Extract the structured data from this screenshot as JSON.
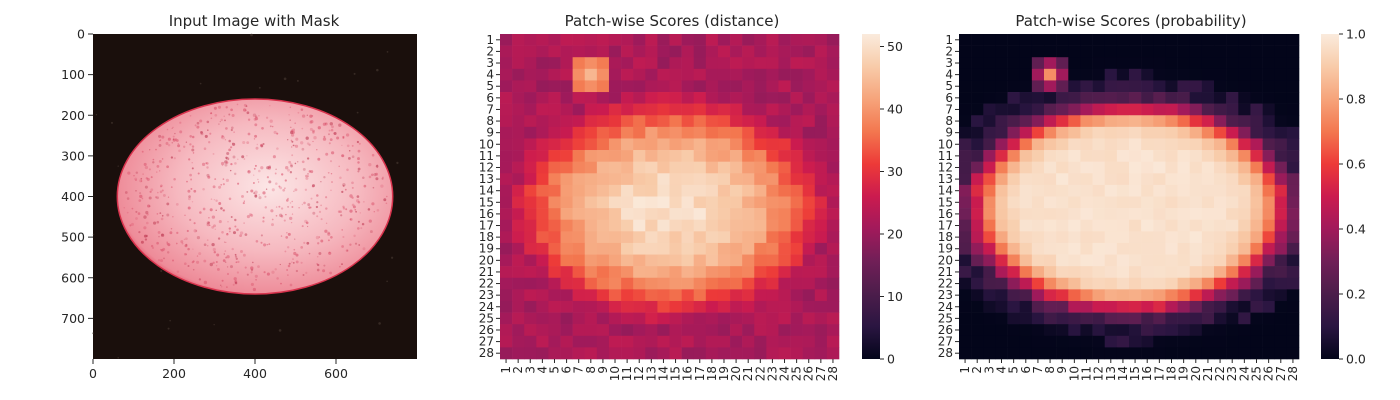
{
  "colors": {
    "rocket_stops": [
      "#03051a",
      "#2a1541",
      "#4c1d4b",
      "#701f57",
      "#a11a5b",
      "#cb1b4f",
      "#ed3a38",
      "#f3774f",
      "#f6a47b",
      "#f8cba9",
      "#faebdd"
    ],
    "image_background": "#1a0f0c",
    "egg_base": "#f3a3ad",
    "egg_center": "#fce6e6",
    "egg_rim": "#e13d57"
  },
  "chart_data": [
    {
      "type": "image",
      "title": "Input Image with Mask",
      "x_ticks": [
        "0",
        "200",
        "400",
        "600"
      ],
      "y_ticks": [
        "0",
        "100",
        "200",
        "300",
        "400",
        "500",
        "600",
        "700"
      ],
      "xlim": [
        0,
        800
      ],
      "ylim": [
        800,
        0
      ],
      "egg": {
        "cx": 400,
        "cy": 400,
        "rx": 340,
        "ry": 240
      }
    },
    {
      "type": "heatmap",
      "title": "Patch-wise Scores (distance)",
      "rows": 28,
      "cols": 28,
      "row_labels": [
        "1",
        "2",
        "3",
        "4",
        "5",
        "6",
        "7",
        "8",
        "9",
        "10",
        "11",
        "12",
        "13",
        "14",
        "15",
        "16",
        "17",
        "18",
        "19",
        "20",
        "21",
        "22",
        "23",
        "24",
        "25",
        "26",
        "27",
        "28"
      ],
      "col_labels": [
        "1",
        "2",
        "3",
        "4",
        "5",
        "6",
        "7",
        "8",
        "9",
        "10",
        "11",
        "12",
        "13",
        "14",
        "15",
        "16",
        "17",
        "18",
        "19",
        "20",
        "21",
        "22",
        "23",
        "24",
        "25",
        "26",
        "27",
        "28"
      ],
      "colorbar": {
        "min": 0,
        "max": 52,
        "ticks": [
          "0",
          "10",
          "20",
          "30",
          "40",
          "50"
        ],
        "tick_values": [
          0,
          10,
          20,
          30,
          40,
          50
        ]
      },
      "model": {
        "base": 22,
        "peak": 50,
        "ellipse_center": [
          14.5,
          15.5
        ],
        "ellipse_radii": [
          13.5,
          10
        ],
        "hot_spot": {
          "col": 8,
          "row": 4,
          "value": 44
        }
      }
    },
    {
      "type": "heatmap",
      "title": "Patch-wise Scores (probability)",
      "rows": 28,
      "cols": 28,
      "row_labels": [
        "1",
        "2",
        "3",
        "4",
        "5",
        "6",
        "7",
        "8",
        "9",
        "10",
        "11",
        "12",
        "13",
        "14",
        "15",
        "16",
        "17",
        "18",
        "19",
        "20",
        "21",
        "22",
        "23",
        "24",
        "25",
        "26",
        "27",
        "28"
      ],
      "col_labels": [
        "1",
        "2",
        "3",
        "4",
        "5",
        "6",
        "7",
        "8",
        "9",
        "10",
        "11",
        "12",
        "13",
        "14",
        "15",
        "16",
        "17",
        "18",
        "19",
        "20",
        "21",
        "22",
        "23",
        "24",
        "25",
        "26",
        "27",
        "28"
      ],
      "colorbar": {
        "min": 0.0,
        "max": 1.0,
        "ticks": [
          "0.0",
          "0.2",
          "0.4",
          "0.6",
          "0.8",
          "1.0"
        ],
        "tick_values": [
          0.0,
          0.2,
          0.4,
          0.6,
          0.8,
          1.0
        ]
      },
      "model": {
        "ellipse_center": [
          14.5,
          15.5
        ],
        "ellipse_radii": [
          12.6,
          8.6
        ],
        "hot_spot": {
          "col": 8,
          "row": 4,
          "value": 0.75
        }
      }
    }
  ]
}
